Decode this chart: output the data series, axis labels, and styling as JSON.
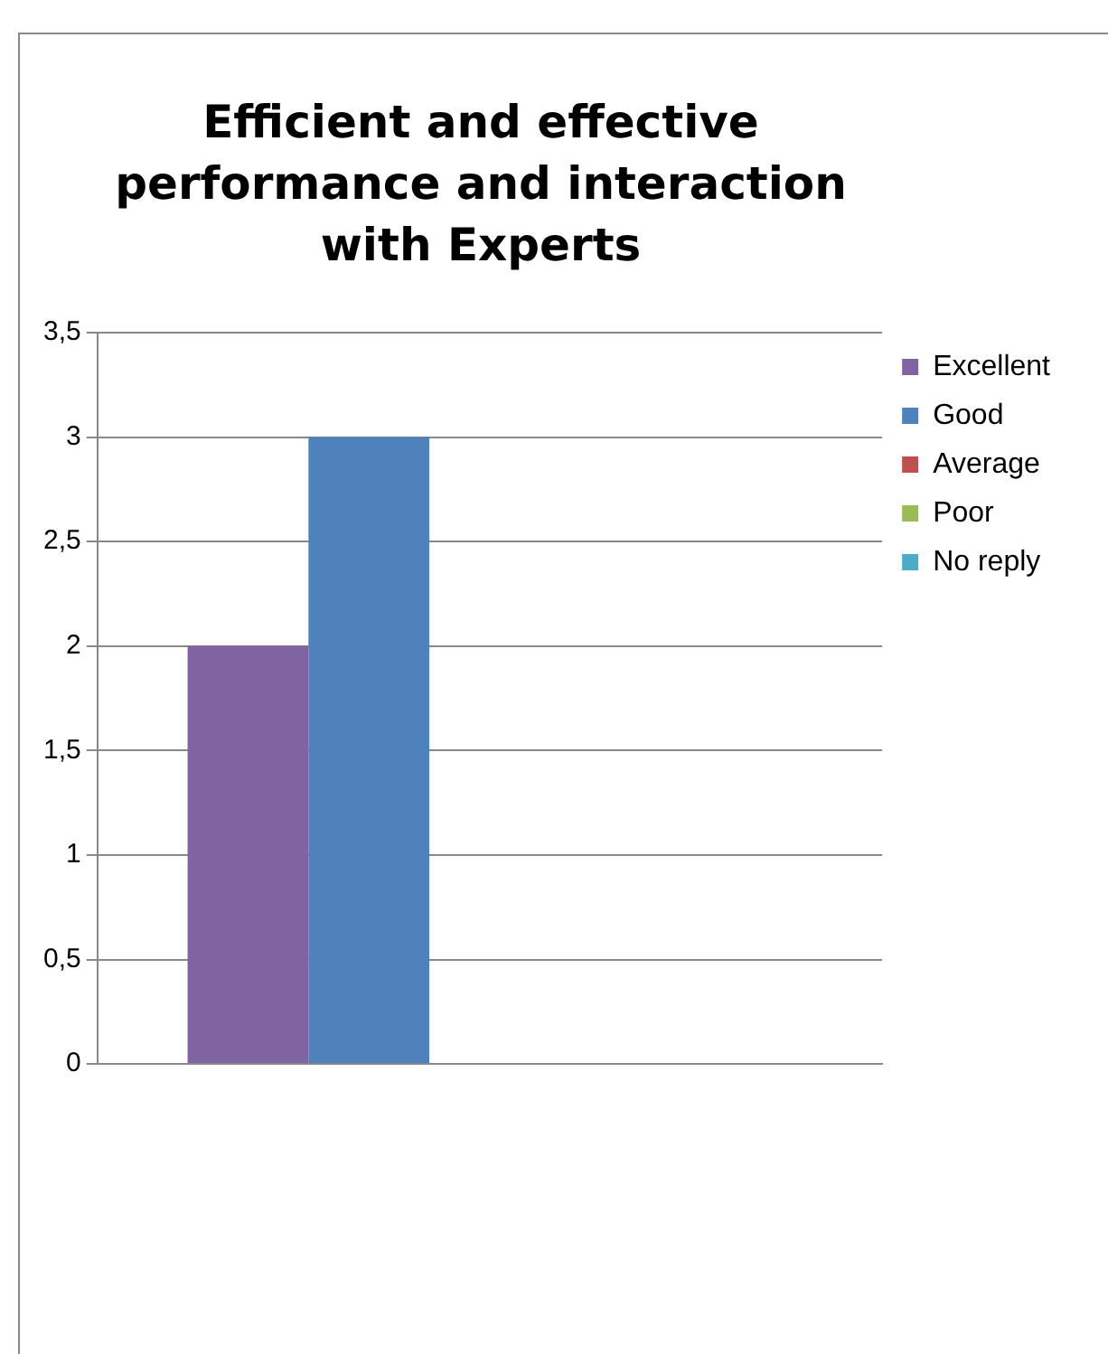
{
  "chart_data": {
    "type": "bar",
    "title": "Efficient and effective performance and interaction with Experts",
    "categories": [
      null
    ],
    "series": [
      {
        "name": "Excellent",
        "color": "#8064a2",
        "values": [
          2
        ]
      },
      {
        "name": "Good",
        "color": "#4f81bd",
        "values": [
          3
        ]
      },
      {
        "name": "Average",
        "color": "#c0504d",
        "values": [
          0
        ]
      },
      {
        "name": "Poor",
        "color": "#9bbb59",
        "values": [
          0
        ]
      },
      {
        "name": "No reply",
        "color": "#4bacc6",
        "values": [
          0
        ]
      }
    ],
    "ylim": [
      0,
      3.5
    ],
    "yticks": [
      0,
      {
        "value": 0.5,
        "label": "0,5"
      },
      1,
      {
        "value": 1.5,
        "label": "1,5"
      },
      2,
      {
        "value": 2.5,
        "label": "2,5"
      },
      3,
      {
        "value": 3.5,
        "label": "3,5"
      }
    ],
    "grid": "y",
    "legend": "right"
  }
}
